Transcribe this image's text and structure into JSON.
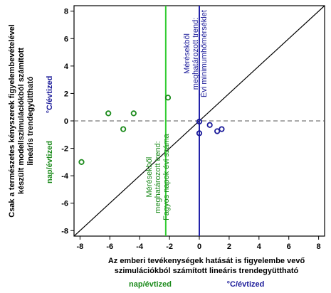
{
  "chart_data": {
    "type": "scatter",
    "xlim": [
      -8.4,
      8.4
    ],
    "ylim": [
      -8.4,
      8.4
    ],
    "x_ticks": [
      -8,
      -6,
      -4,
      -2,
      0,
      2,
      4,
      6,
      8
    ],
    "y_ticks": [
      -8,
      -6,
      -4,
      -2,
      0,
      2,
      4,
      6,
      8
    ],
    "x_tick_labels": [
      "-8",
      "-6",
      "-4",
      "-2",
      "0",
      "2",
      "4",
      "6",
      "8"
    ],
    "y_tick_labels": [
      "-8",
      "-6",
      "-4",
      "-2",
      "0",
      "2",
      "4",
      "6",
      "8"
    ],
    "xlabel_lines": [
      "Az emberi tevékenységek hatását is figyelembe vevő",
      "szimulációkból számított lineáris trendegyüttható"
    ],
    "ylabel_lines": [
      "Csak a természetes kényszerek figyelembevételével",
      "készült modellszimulációkból számított",
      "lineáris trendegyüttható"
    ],
    "units": {
      "frost_days": "nap/évtized",
      "min_temp": "°C/évtized"
    },
    "colors": {
      "frost_days": "#1a8a1a",
      "frost_line": "#33cc33",
      "min_temp": "#1a1a99",
      "min_line": "#2222aa",
      "diagonal": "#000000",
      "zero_line": "#555555"
    },
    "series": [
      {
        "key": "frost_days",
        "points": [
          {
            "x": -7.9,
            "y": -3.0
          },
          {
            "x": -6.1,
            "y": 0.55
          },
          {
            "x": -5.1,
            "y": -0.6
          },
          {
            "x": -4.4,
            "y": 0.55
          },
          {
            "x": -2.1,
            "y": 1.7
          }
        ]
      },
      {
        "key": "min_temp",
        "points": [
          {
            "x": 0.0,
            "y": -0.05
          },
          {
            "x": 0.0,
            "y": -0.9
          },
          {
            "x": 0.7,
            "y": -0.3
          },
          {
            "x": 1.2,
            "y": -0.75
          },
          {
            "x": 1.5,
            "y": -0.6
          }
        ]
      }
    ],
    "vertical_lines": [
      {
        "key": "frost_line",
        "x": -2.25,
        "label_lines": [
          "Mérésekből",
          "meghatározott trend:",
          "Fagyos napok évi száma"
        ]
      },
      {
        "key": "min_line",
        "x": 0.0,
        "label_lines": [
          "Mérésekből",
          "meghatározott trend:",
          "Évi minimumhőmérséklet"
        ]
      }
    ],
    "diagonal": {
      "from": [
        -8.4,
        -8.4
      ],
      "to": [
        8.4,
        8.4
      ]
    },
    "zero_hline": {
      "y": 0
    }
  }
}
